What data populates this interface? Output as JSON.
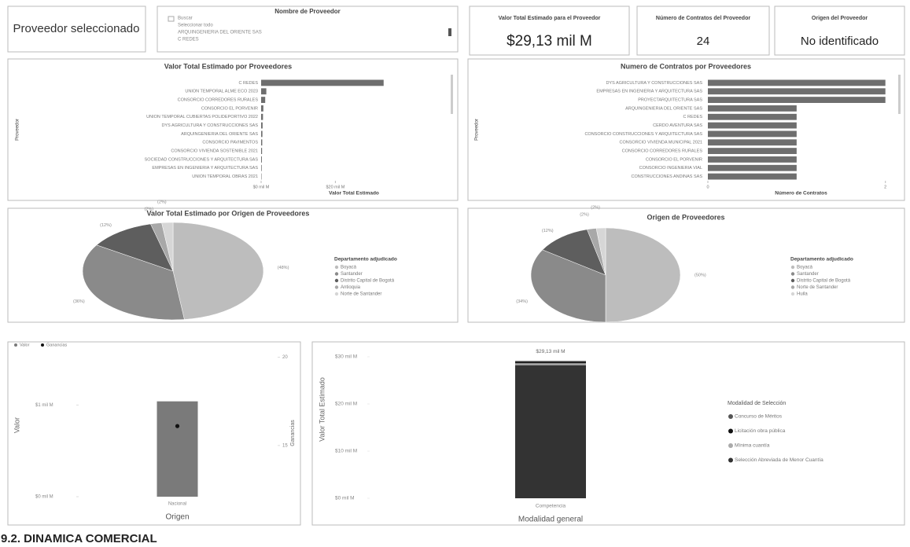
{
  "selected_card": {
    "text": "Proveedor seleccionado"
  },
  "slicer": {
    "title": "Nombre de Proveedor",
    "items": [
      "Buscar",
      "Seleccionar todo",
      "ARQUINGENIERIA DEL ORIENTE SAS",
      "C REDES"
    ]
  },
  "kpis": [
    {
      "title": "Valor Total Estimado para el Proveedor",
      "value": "$29,13 mil M"
    },
    {
      "title": "Número de Contratos del Proveedor",
      "value": 24
    },
    {
      "title": "Origen del Proveedor",
      "value": "No identificado"
    }
  ],
  "chart_data": [
    {
      "type": "hbar",
      "title": "Valor Total Estimado por Proveedores",
      "x_label": "Valor Total Estimado",
      "y_label": "Proveedor",
      "categories": [
        "C REDES",
        "UNION TEMPORAL ALME ECO 2023",
        "CONSORCIO CORREDORES RURALES",
        "CONSORCIO EL PORVENIR",
        "UNION TEMPORAL CUBIERTAS POLIDEPORTIVO 2022",
        "DYS AGRICULTURA Y CONSTRUCCIONES SAS",
        "ARQUINGENIERIA DEL ORIENTE SAS",
        "CONSORCIO PAVIMENTOS",
        "CONSORCIO VIVIENDA SOSTENIBLE 2021",
        "SOCIEDAD CONSTRUCCIONES Y ARQUITECTURA SAS",
        "EMPRESAS EN INGENIERIA Y ARQUITECTURA SAS",
        "UNION TEMPORAL OBRAS 2021"
      ],
      "values": [
        33,
        1.4,
        1.1,
        0.6,
        0.5,
        0.4,
        0.35,
        0.3,
        0.25,
        0.2,
        0.15,
        0.1
      ],
      "color": "#6e6e6e",
      "xlim": [
        0,
        50
      ],
      "xticks": [
        {
          "value": 0,
          "label": "$0 mil M"
        },
        {
          "value": 20,
          "label": "$20 mil M"
        }
      ]
    },
    {
      "type": "hbar",
      "title": "Numero de Contratos por Proveedores",
      "x_label": "Número de Contratos",
      "y_label": "Proveedor",
      "categories": [
        "DYS AGRICULTURA Y CONSTRUCCIONES SAS",
        "EMPRESAS EN INGENIERIA Y ARQUITECTURA SAS",
        "PROYECTARQUITECTURA SAS",
        "ARQUINGENIERIA DEL ORIENTE SAS",
        "C REDES",
        "CERDO AVENTURA SAS",
        "CONSORCIO CONSTRUCCIONES Y ARQUITECTURA SAS",
        "CONSORCIO VIVIENDA MUNICIPAL 2021",
        "CONSORCIO CORREDORES RURALES",
        "CONSORCIO EL PORVENIR",
        "CONSORCIO INGENIERIA VIAL",
        "CONSTRUCCIONES ANDINAS SAS"
      ],
      "values": [
        2,
        2,
        2,
        1,
        1,
        1,
        1,
        1,
        1,
        1,
        1,
        1
      ],
      "color": "#6e6e6e",
      "xlim": [
        0,
        2.1
      ],
      "xticks": [
        0,
        2
      ]
    },
    {
      "type": "pie",
      "title": "Valor Total Estimado por Origen de Proveedores",
      "legend_title": "Departamento adjudicado",
      "categories": [
        "Boyacá",
        "Santander",
        "Distrito Capital de Bogotá",
        "Antioquia",
        "Norte de Santander"
      ],
      "values": [
        48,
        36,
        12,
        2,
        2
      ],
      "value_labels": [
        "(48%)",
        "(36%)",
        "(12%)",
        "(2%)",
        "(2%)"
      ],
      "colors": [
        "#bdbdbd",
        "#8a8a8a",
        "#5e5e5e",
        "#a8a8a8",
        "#d6d6d6"
      ]
    },
    {
      "type": "pie",
      "title": "Origen de Proveedores",
      "legend_title": "Departamento adjudicado",
      "categories": [
        "Boyacá",
        "Santander",
        "Distrito Capital de Bogotá",
        "Norte de Santander",
        "Huila"
      ],
      "values": [
        50,
        34,
        12,
        2,
        2
      ],
      "value_labels": [
        "(50%)",
        "(34%)",
        "(12%)",
        "(2%)",
        "(2%)"
      ],
      "colors": [
        "#bdbdbd",
        "#8a8a8a",
        "#5e5e5e",
        "#a8a8a8",
        "#d6d6d6"
      ]
    },
    {
      "type": "combo",
      "x_label": "Origen",
      "y_label": "Valor",
      "y2_label": "Ganancias",
      "categories": [
        "Nacional"
      ],
      "series": [
        {
          "name": "Valor",
          "color": "#7a7a7a",
          "values": [
            1.04
          ]
        },
        {
          "name": "Ganancias",
          "color": "#111111",
          "values": [
            16.1
          ],
          "axis": "y2"
        }
      ],
      "ylim": [
        0,
        1.56
      ],
      "yticks": [
        {
          "value": 0,
          "label": "$0 mil M"
        },
        {
          "value": 1,
          "label": "$1 mil M"
        }
      ],
      "y2lim": [
        12.1,
        20.2
      ],
      "y2ticks": [
        15,
        20
      ]
    },
    {
      "type": "stacked",
      "x_label": "Modalidad general",
      "y_label": "Valor Total Estimado",
      "categories": [
        "Competencia"
      ],
      "total_label": "$29,13 mil M",
      "legend_title": "Modalidad de Selección",
      "series": [
        {
          "name": "Concurso de Méritos",
          "color": "#555555",
          "values": [
            0.2
          ]
        },
        {
          "name": "Licitación obra pública",
          "color": "#111111",
          "values": [
            0.3
          ]
        },
        {
          "name": "Mínima cuantía",
          "color": "#aaaaaa",
          "values": [
            0.4
          ]
        },
        {
          "name": "Selección Abreviada de Menor Cuantía",
          "color": "#333333",
          "values": [
            28.23
          ]
        }
      ],
      "ylim": [
        0,
        31
      ],
      "yticks": [
        {
          "value": 0,
          "label": "$0 mil M"
        },
        {
          "value": 10,
          "label": "$10 mil M"
        },
        {
          "value": 20,
          "label": "$20 mil M"
        },
        {
          "value": 30,
          "label": "$30 mil M"
        }
      ]
    }
  ],
  "footer": "9.2. DINAMICA COMERCIAL"
}
